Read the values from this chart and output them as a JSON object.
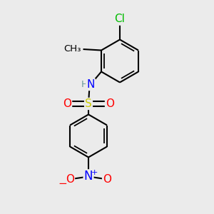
{
  "bg_color": "#ebebeb",
  "bond_color": "#000000",
  "bond_width": 1.5,
  "atom_colors": {
    "C": "#000000",
    "H": "#6a9a9a",
    "N": "#0000ff",
    "O": "#ff0000",
    "S": "#cccc00",
    "Cl": "#00bb00"
  },
  "font_size": 10
}
